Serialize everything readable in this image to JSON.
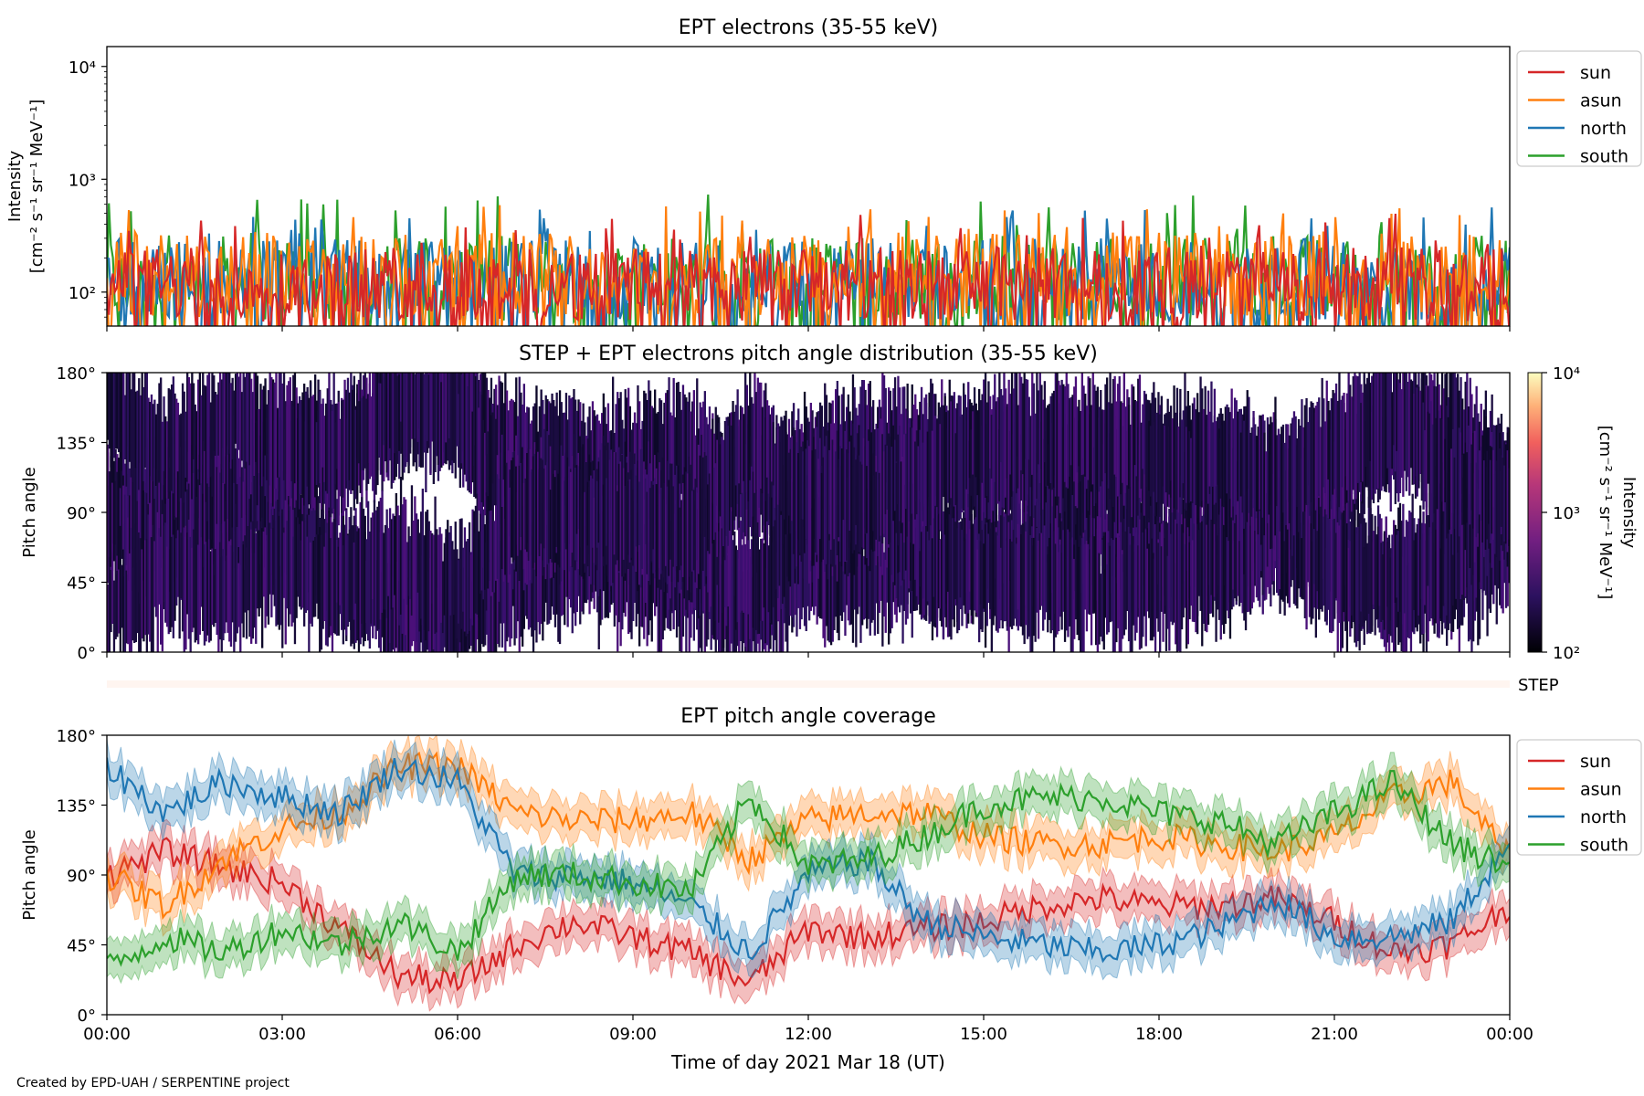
{
  "footer": "Created by EPD-UAH / SERPENTINE project",
  "x_axis": {
    "label": "Time of day 2021 Mar 18 (UT)",
    "ticks": [
      "00:00",
      "03:00",
      "06:00",
      "09:00",
      "12:00",
      "15:00",
      "18:00",
      "21:00",
      "00:00"
    ],
    "range_hours": [
      0,
      24
    ]
  },
  "legend_labels": [
    "sun",
    "asun",
    "north",
    "south"
  ],
  "colors": {
    "sun": "#d62728",
    "asun": "#ff7f0e",
    "north": "#1f77b4",
    "south": "#2ca02c"
  },
  "chart_data": [
    {
      "type": "line",
      "title": "EPT electrons (35-55 keV)",
      "ylabel_line1": "Intensity",
      "ylabel_line2": "[cm⁻² s⁻¹ sr⁻¹ MeV⁻¹]",
      "yscale": "log",
      "ylim": [
        50,
        15000
      ],
      "y_ticks": [
        "10²",
        "10³",
        "10⁴"
      ],
      "y_tick_values": [
        100,
        1000,
        10000
      ],
      "legend": "upper right, outside",
      "series": [
        {
          "name": "sun",
          "typical_range": [
            55,
            250
          ],
          "peak": 500
        },
        {
          "name": "asun",
          "typical_range": [
            60,
            350
          ],
          "peak": 600
        },
        {
          "name": "north",
          "typical_range": [
            55,
            300
          ],
          "peak": 580
        },
        {
          "name": "south",
          "typical_range": [
            55,
            320
          ],
          "peak": 750
        }
      ]
    },
    {
      "type": "heatmap",
      "title": "STEP + EPT electrons pitch angle distribution (35-55 keV)",
      "ylabel": "Pitch angle",
      "ylim": [
        0,
        180
      ],
      "y_ticks": [
        "0°",
        "45°",
        "90°",
        "135°",
        "180°"
      ],
      "y_tick_values": [
        0,
        45,
        90,
        135,
        180
      ],
      "colorbar": {
        "label": "Intensity",
        "units": "[cm⁻² s⁻¹ sr⁻¹ MeV⁻¹]",
        "scale": "log",
        "range": [
          100,
          10000
        ],
        "ticks": [
          "10²",
          "10³",
          "10⁴"
        ]
      },
      "step_band_label": "STEP",
      "coverage_hours": [
        0,
        24
      ]
    },
    {
      "type": "line",
      "title": "EPT pitch angle coverage",
      "ylabel": "Pitch angle",
      "ylim": [
        0,
        180
      ],
      "y_ticks": [
        "0°",
        "45°",
        "90°",
        "135°",
        "180°"
      ],
      "y_tick_values": [
        0,
        45,
        90,
        135,
        180
      ],
      "legend": "upper right, outside",
      "x_hours": [
        0,
        1,
        2,
        3,
        4,
        5,
        6,
        7,
        8,
        9,
        10,
        11,
        12,
        13,
        14,
        15,
        16,
        17,
        18,
        19,
        20,
        21,
        22,
        23,
        24
      ],
      "series": [
        {
          "name": "sun",
          "values": [
            90,
            105,
            95,
            85,
            55,
            25,
            20,
            45,
            60,
            50,
            40,
            20,
            55,
            50,
            55,
            60,
            70,
            75,
            70,
            70,
            75,
            60,
            40,
            45,
            70
          ]
        },
        {
          "name": "asun",
          "values": [
            90,
            70,
            100,
            120,
            130,
            160,
            160,
            130,
            125,
            125,
            130,
            100,
            125,
            130,
            130,
            115,
            110,
            110,
            115,
            110,
            105,
            115,
            140,
            150,
            100
          ]
        },
        {
          "name": "north",
          "values": [
            160,
            130,
            150,
            140,
            130,
            160,
            150,
            90,
            90,
            85,
            70,
            40,
            90,
            100,
            60,
            50,
            45,
            40,
            45,
            55,
            75,
            50,
            50,
            60,
            110
          ]
        },
        {
          "name": "south",
          "values": [
            30,
            50,
            40,
            55,
            45,
            60,
            40,
            90,
            90,
            85,
            80,
            140,
            95,
            100,
            115,
            135,
            140,
            140,
            130,
            125,
            110,
            130,
            150,
            110,
            95
          ]
        }
      ],
      "band_halfwidth_deg": 12
    }
  ]
}
